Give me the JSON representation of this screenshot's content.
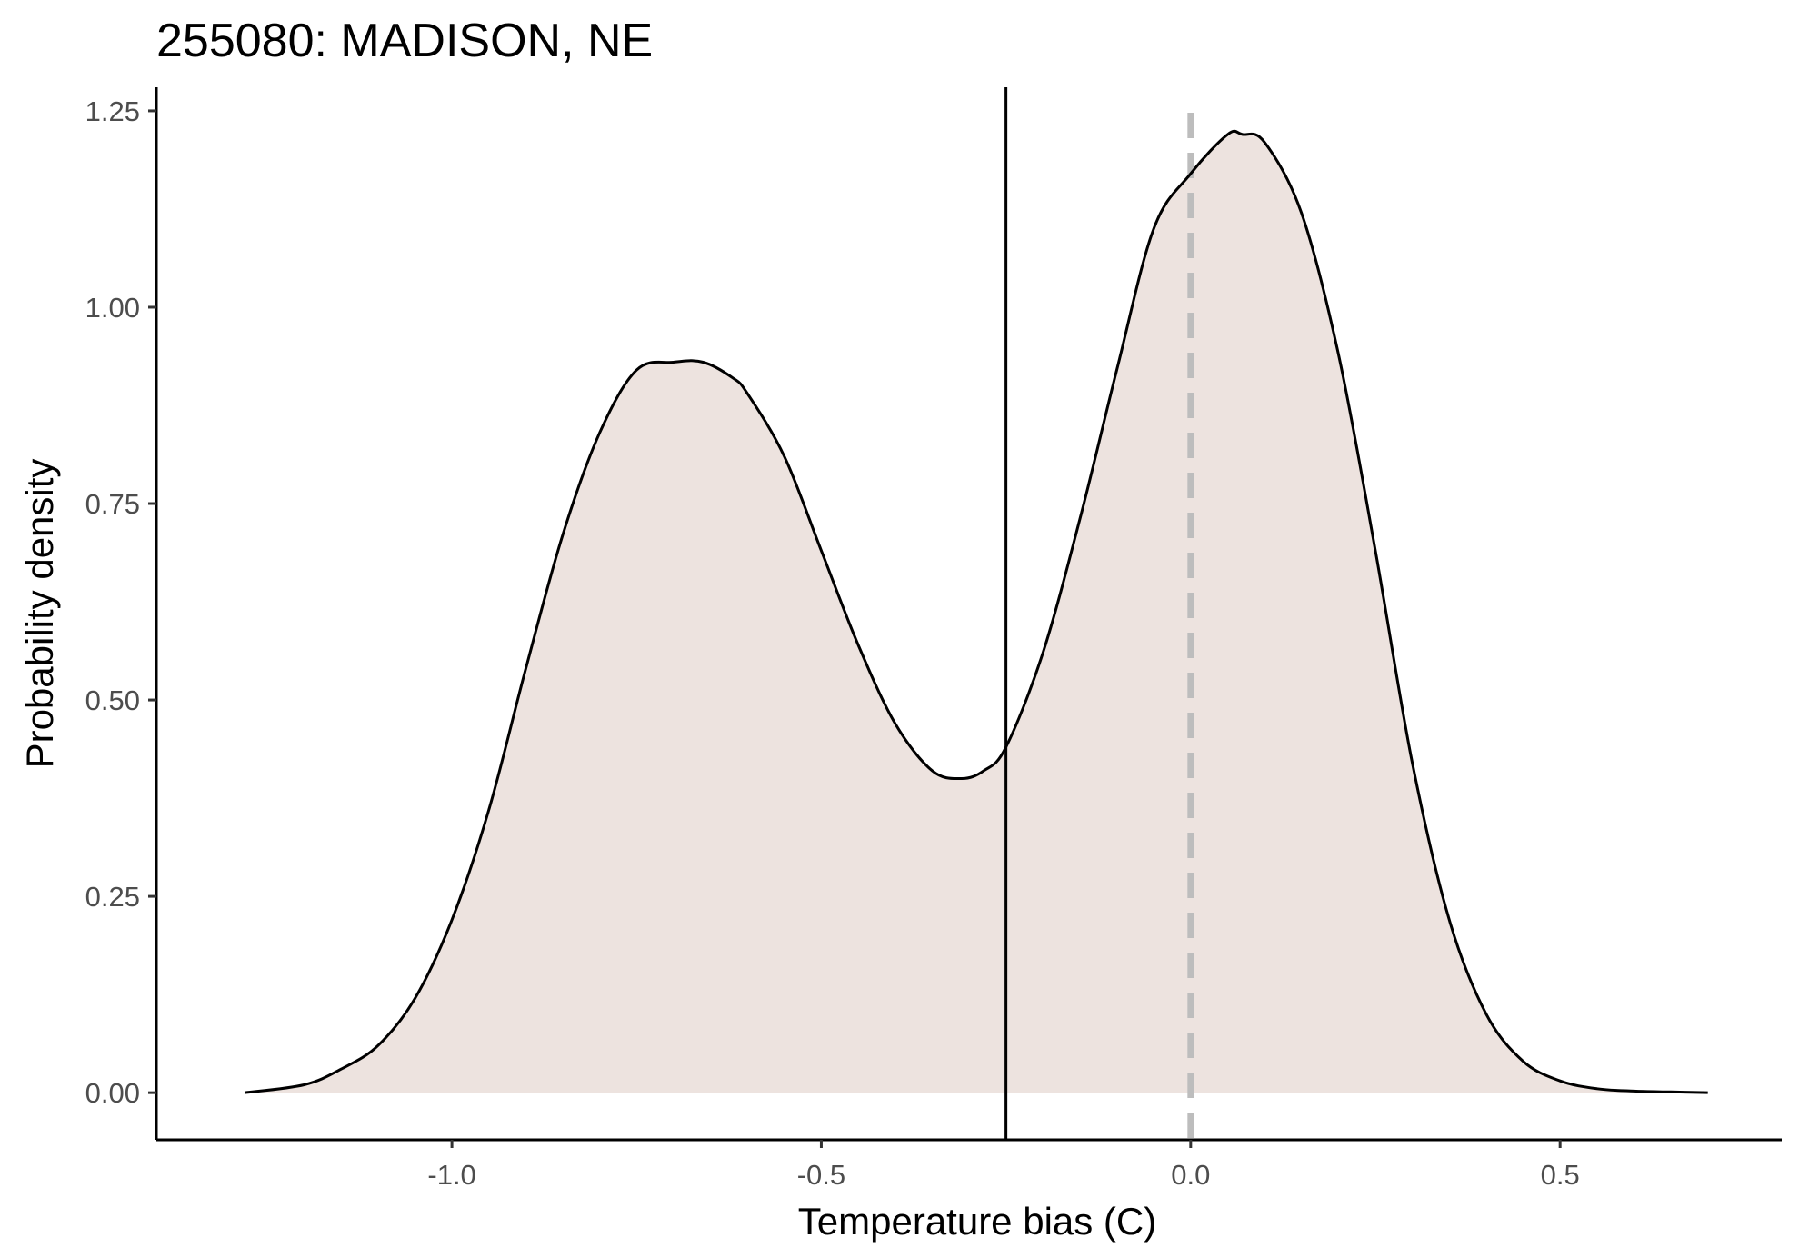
{
  "chart_data": {
    "type": "area",
    "title": "255080: MADISON, NE",
    "xlabel": "Temperature bias (C)",
    "ylabel": "Probability density",
    "xlim": [
      -1.4,
      0.8
    ],
    "ylim": [
      -0.06,
      1.28
    ],
    "x_ticks": [
      -1.0,
      -0.5,
      0.0,
      0.5
    ],
    "x_tick_labels": [
      "-1.0",
      "-0.5",
      "0.0",
      "0.5"
    ],
    "y_ticks": [
      0.0,
      0.25,
      0.5,
      0.75,
      1.0,
      1.25
    ],
    "y_tick_labels": [
      "0.00",
      "0.25",
      "0.50",
      "0.75",
      "1.00",
      "1.25"
    ],
    "grid": false,
    "fill_color": "#ede3df",
    "line_color": "#000000",
    "reference_lines": [
      {
        "x": -0.25,
        "style": "solid",
        "color": "#000000"
      },
      {
        "x": 0.0,
        "style": "dashed",
        "color": "#bdbdbd"
      }
    ],
    "series": [
      {
        "x": [
          -1.28,
          -1.2,
          -1.15,
          -1.1,
          -1.05,
          -1.0,
          -0.95,
          -0.9,
          -0.85,
          -0.8,
          -0.75,
          -0.7,
          -0.66,
          -0.62,
          -0.6,
          -0.55,
          -0.5,
          -0.45,
          -0.4,
          -0.35,
          -0.31,
          -0.28,
          -0.25,
          -0.2,
          -0.15,
          -0.1,
          -0.05,
          0.0,
          0.05,
          0.07,
          0.1,
          0.15,
          0.2,
          0.25,
          0.3,
          0.35,
          0.4,
          0.45,
          0.5,
          0.55,
          0.6,
          0.65,
          0.7
        ],
        "y": [
          0.0,
          0.01,
          0.03,
          0.06,
          0.12,
          0.22,
          0.36,
          0.54,
          0.71,
          0.84,
          0.92,
          0.93,
          0.93,
          0.91,
          0.89,
          0.81,
          0.69,
          0.57,
          0.47,
          0.41,
          0.4,
          0.41,
          0.44,
          0.56,
          0.73,
          0.92,
          1.1,
          1.17,
          1.22,
          1.22,
          1.21,
          1.12,
          0.94,
          0.69,
          0.42,
          0.22,
          0.1,
          0.04,
          0.015,
          0.005,
          0.002,
          0.001,
          0.0
        ]
      }
    ]
  }
}
